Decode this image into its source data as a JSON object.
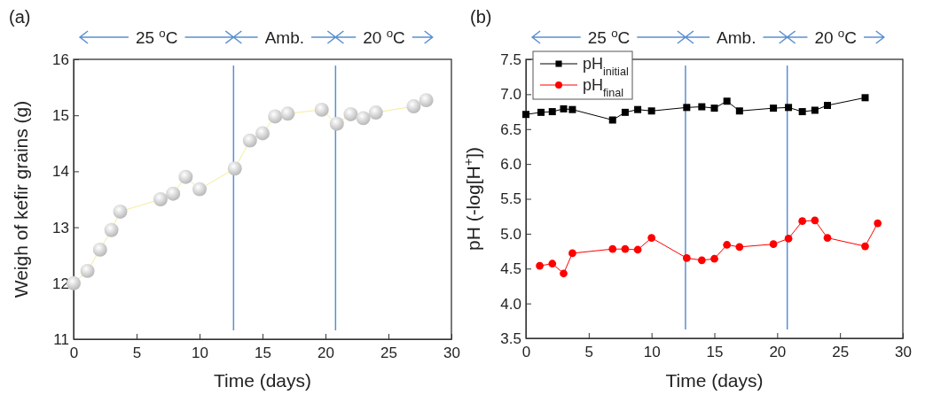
{
  "chart_data": [
    {
      "type": "line",
      "title": "(a)",
      "xlabel": "Time (days)",
      "ylabel": "Weigh of kefir grains (g)",
      "xlim": [
        0,
        30
      ],
      "xticks": [
        0,
        5,
        10,
        15,
        20,
        25,
        30
      ],
      "ylim": [
        11,
        16
      ],
      "yticks": [
        11,
        12,
        13,
        14,
        15,
        16
      ],
      "marker": "circle",
      "legend": false,
      "grid": false,
      "annotations": [
        "25 $^{o}$C",
        "Amb.",
        "20 $^{o}$C"
      ],
      "ref_lines": [
        {
          "axis": "x",
          "value": 12.7,
          "color": "#5b8fd0"
        },
        {
          "axis": "x",
          "value": 20.8,
          "color": "#5b8fd0"
        }
      ],
      "series": [
        {
          "color": "#b8b8b8",
          "x": [
            0,
            1.1,
            2.1,
            3,
            3.7,
            6.9,
            7.9,
            8.9,
            10,
            12.8,
            14,
            15,
            16,
            17,
            19.7,
            20.9,
            22,
            23,
            24,
            27,
            28
          ],
          "values": [
            12.0,
            12.22,
            12.6,
            12.95,
            13.28,
            13.5,
            13.6,
            13.9,
            13.68,
            14.05,
            14.55,
            14.68,
            14.98,
            15.03,
            15.1,
            14.85,
            15.02,
            14.95,
            15.05,
            15.16,
            15.27
          ]
        }
      ]
    },
    {
      "type": "line",
      "title": "(b)",
      "xlabel": "Time (days)",
      "ylabel": "pH (-log[H$^{+}$])",
      "xlim": [
        0,
        30
      ],
      "xticks": [
        0,
        5,
        10,
        15,
        20,
        25,
        30
      ],
      "ylim": [
        3.5,
        7.5
      ],
      "yticks": [
        {
          "value": 3.5,
          "label": "3.5"
        },
        {
          "value": 4,
          "label": "4.0"
        },
        {
          "value": 4.5,
          "label": "4.5"
        },
        {
          "value": 5,
          "label": "5.0"
        },
        {
          "value": 5.5,
          "label": "5.5"
        },
        {
          "value": 6,
          "label": "6.0"
        },
        {
          "value": 6.5,
          "label": "6.5"
        },
        {
          "value": 7,
          "label": "7.0"
        },
        {
          "value": 7.5,
          "label": "7.5"
        }
      ],
      "legend": "top left",
      "grid": false,
      "annotations": [
        "25 $^{o}$C",
        "Amb.",
        "20 $^{o}$C"
      ],
      "ref_lines": [
        {
          "axis": "x",
          "value": 12.7,
          "color": "#5b8fd0"
        },
        {
          "axis": "x",
          "value": 20.8,
          "color": "#5b8fd0"
        }
      ],
      "series": [
        {
          "name": "pH$_{initial}$",
          "color": "#000000",
          "marker": "square",
          "x": [
            0,
            1.2,
            2.1,
            3,
            3.7,
            6.9,
            7.9,
            8.9,
            10,
            12.8,
            14,
            15,
            16,
            17,
            19.7,
            20.9,
            22,
            23,
            24,
            27
          ],
          "values": [
            6.71,
            6.74,
            6.75,
            6.79,
            6.78,
            6.63,
            6.74,
            6.78,
            6.76,
            6.81,
            6.82,
            6.8,
            6.9,
            6.76,
            6.8,
            6.81,
            6.75,
            6.77,
            6.84,
            6.95
          ]
        },
        {
          "name": "pH$_{final}$",
          "color": "#ff0000",
          "marker": "circle",
          "x": [
            1.1,
            2.1,
            3,
            3.7,
            6.9,
            7.9,
            8.9,
            10,
            12.8,
            14,
            15,
            16,
            17,
            19.7,
            20.9,
            22,
            23,
            24,
            27,
            28
          ],
          "values": [
            4.54,
            4.57,
            4.43,
            4.72,
            4.78,
            4.78,
            4.77,
            4.94,
            4.65,
            4.62,
            4.64,
            4.84,
            4.81,
            4.85,
            4.93,
            5.18,
            5.19,
            4.94,
            4.82,
            5.15
          ]
        }
      ]
    }
  ]
}
